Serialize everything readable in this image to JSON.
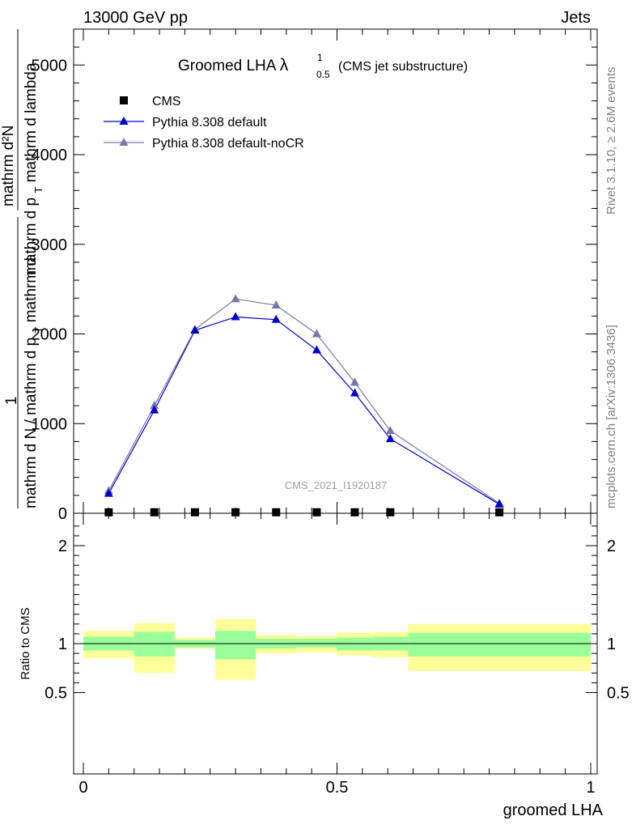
{
  "header": {
    "left": "13000 GeV pp",
    "right": "Jets"
  },
  "side_labels": {
    "rivet": "Rivet 3.1.10, ≥ 2.6M events",
    "mcplots": "mcplots.cern.ch [arXiv:1306.3436]"
  },
  "chart_data": [
    {
      "type": "line",
      "title": "Groomed LHA",
      "title_symbol": "λ",
      "title_sup": "1",
      "title_sub": "0.5",
      "subtitle": "(CMS jet substructure)",
      "watermark": "CMS_2021_I1920187",
      "ylabel_parts": {
        "frac_top": "1",
        "numerator_top": "mathrm d²N",
        "denominator_top": "mathrm d p",
        "den_sub": "T",
        "den_rest": " mathrm d lambda",
        "frac_bottom": "mathrm d N / mathrm d p",
        "bottom_sub": "T",
        "bottom_rest": " mathrm d"
      },
      "xlim": [
        0,
        1
      ],
      "ylim": [
        0,
        5400
      ],
      "y_ticks": [
        0,
        1000,
        2000,
        3000,
        4000,
        5000
      ],
      "y_tick_labels": [
        "0",
        "1000",
        "2000",
        "3000",
        "4000",
        "5000"
      ],
      "legend": [
        "CMS",
        "Pythia 8.308 default",
        "Pythia 8.308 default-noCR"
      ],
      "legend_position": "top-left",
      "series": [
        {
          "name": "CMS",
          "color": "#000000",
          "marker": "square",
          "x": [
            0.05,
            0.14,
            0.22,
            0.3,
            0.38,
            0.46,
            0.535,
            0.605,
            0.82
          ],
          "y": [
            2,
            2,
            2,
            2,
            2,
            2,
            2,
            2,
            2
          ]
        },
        {
          "name": "Pythia 8.308 default",
          "color": "#0000cc",
          "marker": "triangle",
          "x": [
            0.05,
            0.14,
            0.22,
            0.3,
            0.38,
            0.46,
            0.535,
            0.605,
            0.82
          ],
          "y": [
            220,
            1150,
            2040,
            2190,
            2160,
            1820,
            1340,
            830,
            100
          ]
        },
        {
          "name": "Pythia 8.308 default-noCR",
          "color": "#7777aa",
          "marker": "triangle",
          "x": [
            0.05,
            0.14,
            0.22,
            0.3,
            0.38,
            0.46,
            0.535,
            0.605,
            0.82
          ],
          "y": [
            250,
            1200,
            2050,
            2390,
            2320,
            2000,
            1460,
            920,
            110
          ]
        }
      ]
    },
    {
      "type": "area",
      "ylabel": "Ratio to CMS",
      "xlabel": "groomed LHA",
      "xlim": [
        0,
        1
      ],
      "ylim": [
        0.4,
        2.3
      ],
      "x_ticks": [
        0,
        0.5,
        1
      ],
      "x_tick_labels": [
        "0",
        "0.5",
        "1"
      ],
      "y_ticks": [
        0.5,
        1,
        2
      ],
      "y_tick_labels": [
        "0.5",
        "1",
        "2"
      ],
      "inner_band_color": "#99ff99",
      "outer_band_color": "#ffff99",
      "bins": [
        {
          "x0": 0.0,
          "x1": 0.1,
          "inner": [
            0.93,
            1.07
          ],
          "outer": [
            0.85,
            1.13
          ]
        },
        {
          "x0": 0.1,
          "x1": 0.18,
          "inner": [
            0.87,
            1.12
          ],
          "outer": [
            0.7,
            1.21
          ]
        },
        {
          "x0": 0.18,
          "x1": 0.26,
          "inner": [
            0.96,
            1.04
          ],
          "outer": [
            0.95,
            1.06
          ]
        },
        {
          "x0": 0.26,
          "x1": 0.34,
          "inner": [
            0.84,
            1.13
          ],
          "outer": [
            0.63,
            1.25
          ]
        },
        {
          "x0": 0.34,
          "x1": 0.42,
          "inner": [
            0.95,
            1.05
          ],
          "outer": [
            0.9,
            1.09
          ]
        },
        {
          "x0": 0.42,
          "x1": 0.5,
          "inner": [
            0.96,
            1.05
          ],
          "outer": [
            0.91,
            1.08
          ]
        },
        {
          "x0": 0.5,
          "x1": 0.57,
          "inner": [
            0.93,
            1.06
          ],
          "outer": [
            0.88,
            1.11
          ]
        },
        {
          "x0": 0.57,
          "x1": 0.64,
          "inner": [
            0.93,
            1.07
          ],
          "outer": [
            0.86,
            1.12
          ]
        },
        {
          "x0": 0.64,
          "x1": 1.0,
          "inner": [
            0.87,
            1.11
          ],
          "outer": [
            0.72,
            1.2
          ]
        }
      ]
    }
  ]
}
